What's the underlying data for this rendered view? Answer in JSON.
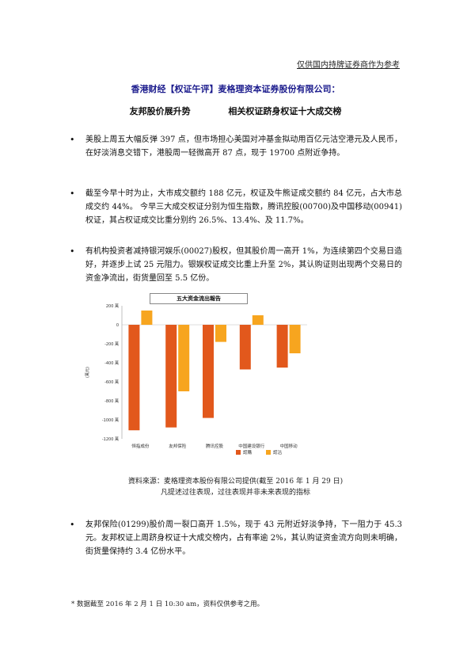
{
  "header": {
    "disclaimer": "仅供国内持牌证券商作为参考",
    "headline": "香港财经【权证午评】麦格理资本证券股份有限公司：",
    "subtitle_left": "友邦股价展升势",
    "subtitle_right": "相关权证跻身权证十大成交榜"
  },
  "paragraphs": [
    "美股上周五大幅反弹 397 点，但市场担心美国对冲基金拟动用百亿元沽空港元及人民币，在好淡消息交错下，港股周一轻微高开 87 点，现于 19700 点附近争持。",
    "截至今早十时为止，大市成交额约 188 亿元，权证及牛熊证成交额约 84 亿元，占大市总成交约 44%。 今早三大成交权证分别为恒生指数，腾讯控股(00700)及中国移动(00941)权证，其占权证成交比重分别约 26.5%、13.4%、及 11.7%。",
    "有机构投资者减持银河娱乐(00027)股权，但其股价周一高开 1%，为连续第四个交易日造好，并逐步上试 25 元阻力。银娱权证成交比重上升至 2%，其认购证则出现两个交易日的资金净流出，街货量回至 5.5 亿份。"
  ],
  "chart_data": {
    "type": "bar",
    "title": "五大资金流出報告",
    "ylabel": "(萬元)",
    "categories": [
      "恒指成份",
      "友邦保险",
      "腾讯控股",
      "中国建设银行",
      "中国移动"
    ],
    "series": [
      {
        "name": "認購",
        "color": "#e2581c",
        "values": [
          -1110,
          -1080,
          -980,
          -470,
          -450
        ]
      },
      {
        "name": "認沽",
        "color": "#f7a51f",
        "values": [
          150,
          -700,
          -180,
          100,
          -300
        ]
      }
    ],
    "yticks": [
      "200 萬",
      "0",
      "-200 萬",
      "-400 萬",
      "-600 萬",
      "-800 萬",
      "-1000 萬",
      "-1200 萬"
    ],
    "ylim": [
      -1200,
      200
    ],
    "legend_position": "bottom-right",
    "grid": false
  },
  "source": {
    "line1": "資料來源：麦格理资本股份有限公司提供(截至 2016 年 1 月 29 日)",
    "line2": "凡提述过往表现，过往表现并非未来表现的指标"
  },
  "last_paragraph": "友邦保险(01299)股价周一裂口高开 1.5%，现于 43 元附近好淡争持，下一阻力于 45.3 元。友邦权证上周跻身权证十大成交榜内，占有率逾 2%，其认购证资金流方向则未明确，街货量保持约 3.4 亿份水平。",
  "footnote": "* 数据截至 2016 年 2 月 1 日 10:30 am，资料仅供参考之用。",
  "glyphs": {
    "bullet": "•"
  }
}
